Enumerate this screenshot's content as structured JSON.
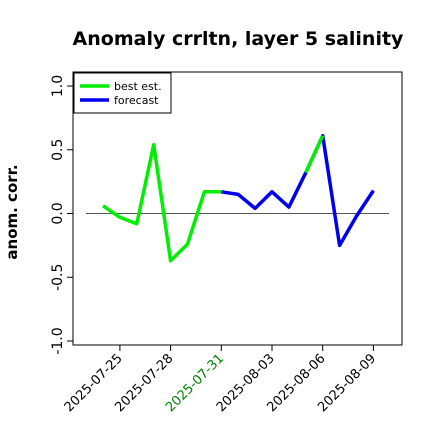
{
  "chart_data": {
    "type": "line",
    "title": "Anomaly crrltn, layer 5 salinity",
    "xlabel": "",
    "ylabel": "anom. corr.",
    "ylim": [
      -1.0,
      1.0
    ],
    "yticks": [
      "-1.0",
      "-0.5",
      "0.0",
      "0.5",
      "1.0"
    ],
    "xticks": [
      {
        "label": "2025-07-25",
        "color": "#000000"
      },
      {
        "label": "2025-07-28",
        "color": "#000000"
      },
      {
        "label": "2025-07-31",
        "color": "#008000"
      },
      {
        "label": "2025-08-03",
        "color": "#000000"
      },
      {
        "label": "2025-08-06",
        "color": "#000000"
      },
      {
        "label": "2025-08-09",
        "color": "#000000"
      }
    ],
    "zero_line": true,
    "grid": false,
    "legend_position": "top-left",
    "series": [
      {
        "name": "best est.",
        "color": "#00ee00",
        "x": [
          "2025-07-24",
          "2025-07-25",
          "2025-07-26",
          "2025-07-27",
          "2025-07-28",
          "2025-07-29",
          "2025-07-30",
          "2025-07-31"
        ],
        "values": [
          0.06,
          -0.03,
          -0.08,
          0.54,
          -0.37,
          -0.24,
          0.17,
          0.17
        ]
      },
      {
        "name": "forecast",
        "color": "#0000ee",
        "x": [
          "2025-07-31",
          "2025-08-01",
          "2025-08-02",
          "2025-08-03",
          "2025-08-04",
          "2025-08-05",
          "2025-08-06",
          "2025-08-07",
          "2025-08-08",
          "2025-08-09"
        ],
        "values": [
          0.17,
          0.15,
          0.04,
          0.17,
          0.05,
          0.32,
          0.61,
          -0.25,
          -0.02,
          0.18
        ]
      },
      {
        "name": "",
        "color": "#00ee00",
        "x": [
          "2025-08-05",
          "2025-08-06"
        ],
        "values": [
          0.32,
          0.61
        ]
      }
    ]
  }
}
